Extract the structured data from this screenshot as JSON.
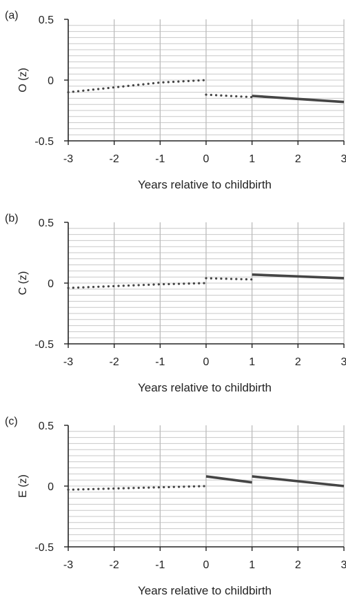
{
  "chart_data": [
    {
      "type": "line",
      "panel_label": "(a)",
      "ylabel": "O (z)",
      "xlabel": "Years relative to childbirth",
      "xlim": [
        -3,
        3
      ],
      "ylim": [
        -0.5,
        0.5
      ],
      "x_ticks": [
        "-3",
        "-2",
        "-1",
        "0",
        "1",
        "2",
        "3"
      ],
      "y_ticks": [
        "0.5",
        "0",
        "-0.5"
      ],
      "segments": [
        {
          "style": "dotted",
          "x": [
            -3,
            -1,
            0
          ],
          "y": [
            -0.1,
            -0.02,
            0.0
          ]
        },
        {
          "style": "dotted",
          "x": [
            0,
            1
          ],
          "y": [
            -0.12,
            -0.14
          ]
        },
        {
          "style": "solid",
          "x": [
            1,
            3
          ],
          "y": [
            -0.13,
            -0.18
          ]
        }
      ]
    },
    {
      "type": "line",
      "panel_label": "(b)",
      "ylabel": "C (z)",
      "xlabel": "Years relative to childbirth",
      "xlim": [
        -3,
        3
      ],
      "ylim": [
        -0.5,
        0.5
      ],
      "x_ticks": [
        "-3",
        "-2",
        "-1",
        "0",
        "1",
        "2",
        "3"
      ],
      "y_ticks": [
        "0.5",
        "0",
        "-0.5"
      ],
      "segments": [
        {
          "style": "dotted",
          "x": [
            -3,
            -1,
            0
          ],
          "y": [
            -0.04,
            -0.01,
            0.0
          ]
        },
        {
          "style": "dotted",
          "x": [
            0,
            1
          ],
          "y": [
            0.04,
            0.03
          ]
        },
        {
          "style": "solid",
          "x": [
            1,
            3
          ],
          "y": [
            0.07,
            0.04
          ]
        }
      ]
    },
    {
      "type": "line",
      "panel_label": "(c)",
      "ylabel": "E (z)",
      "xlabel": "Years relative to childbirth",
      "xlim": [
        -3,
        3
      ],
      "ylim": [
        -0.5,
        0.5
      ],
      "x_ticks": [
        "-3",
        "-2",
        "-1",
        "0",
        "1",
        "2",
        "3"
      ],
      "y_ticks": [
        "0.5",
        "0",
        "-0.5"
      ],
      "segments": [
        {
          "style": "dotted",
          "x": [
            -3,
            -1,
            0
          ],
          "y": [
            -0.03,
            -0.01,
            0.0
          ]
        },
        {
          "style": "solid",
          "x": [
            0,
            1
          ],
          "y": [
            0.08,
            0.03
          ]
        },
        {
          "style": "solid",
          "x": [
            1,
            3
          ],
          "y": [
            0.08,
            0.0
          ]
        }
      ]
    }
  ]
}
